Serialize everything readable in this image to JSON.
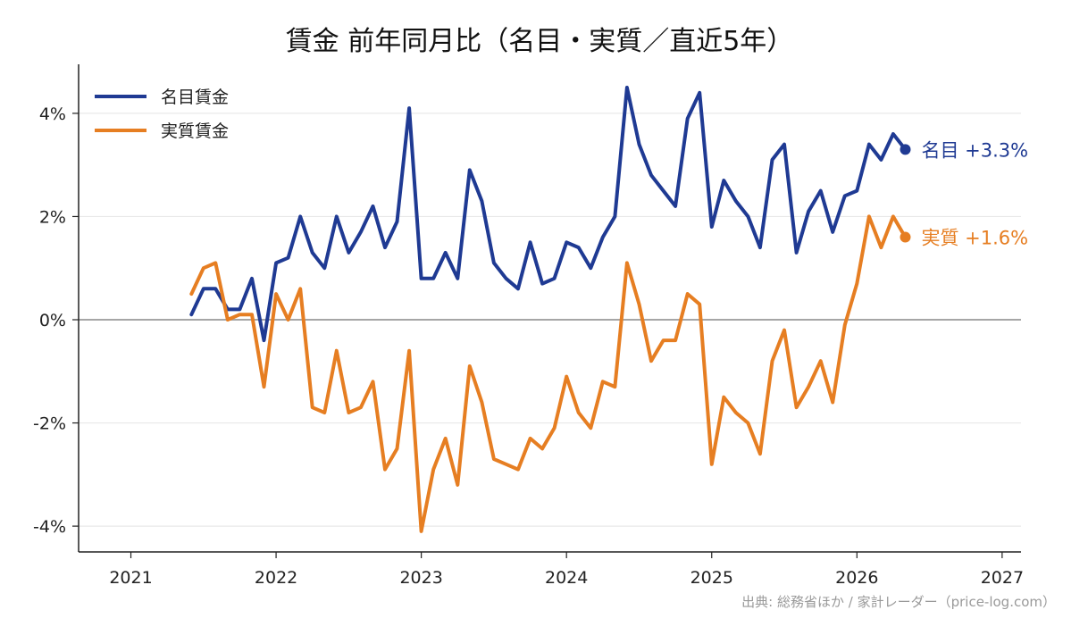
{
  "chart_data": {
    "type": "line",
    "title": "賃金 前年同月比（名目・実質／直近5年）",
    "source": "出典: 総務省ほか / 家計レーダー（price-log.com）",
    "xlim": [
      2020.64,
      2027.13
    ],
    "ylim": [
      -4.5,
      4.95
    ],
    "x_ticks": [
      2021,
      2022,
      2023,
      2024,
      2025,
      2026,
      2027
    ],
    "x_tick_labels": [
      "2021",
      "2022",
      "2023",
      "2024",
      "2025",
      "2026",
      "2027"
    ],
    "y_ticks": [
      -4,
      -2,
      0,
      2,
      4
    ],
    "y_tick_labels": [
      "-4%",
      "-2%",
      "0%",
      "2%",
      "4%"
    ],
    "grid": "horizontal",
    "legend_position": "top-left",
    "start": {
      "year": 2021,
      "month": 6
    },
    "series": [
      {
        "name": "名目賃金",
        "color": "#1f3a93",
        "end_label": "名目 +3.3%",
        "values": [
          0.1,
          0.6,
          0.6,
          0.2,
          0.2,
          0.8,
          -0.4,
          1.1,
          1.2,
          2.0,
          1.3,
          1.0,
          2.0,
          1.3,
          1.7,
          2.2,
          1.4,
          1.9,
          4.1,
          0.8,
          0.8,
          1.3,
          0.8,
          2.9,
          2.3,
          1.1,
          0.8,
          0.6,
          1.5,
          0.7,
          0.8,
          1.5,
          1.4,
          1.0,
          1.6,
          2.0,
          4.5,
          3.4,
          2.8,
          2.5,
          2.2,
          3.9,
          4.4,
          1.8,
          2.7,
          2.3,
          2.0,
          1.4,
          3.1,
          3.4,
          1.3,
          2.1,
          2.5,
          1.7,
          2.4,
          2.5,
          3.4,
          3.1,
          3.6,
          3.3
        ]
      },
      {
        "name": "実質賃金",
        "color": "#e67e22",
        "end_label": "実質 +1.6%",
        "values": [
          0.5,
          1.0,
          1.1,
          0.0,
          0.1,
          0.1,
          -1.3,
          0.5,
          0.0,
          0.6,
          -1.7,
          -1.8,
          -0.6,
          -1.8,
          -1.7,
          -1.2,
          -2.9,
          -2.5,
          -0.6,
          -4.1,
          -2.9,
          -2.3,
          -3.2,
          -0.9,
          -1.6,
          -2.7,
          -2.8,
          -2.9,
          -2.3,
          -2.5,
          -2.1,
          -1.1,
          -1.8,
          -2.1,
          -1.2,
          -1.3,
          1.1,
          0.3,
          -0.8,
          -0.4,
          -0.4,
          0.5,
          0.3,
          -2.8,
          -1.5,
          -1.8,
          -2.0,
          -2.6,
          -0.8,
          -0.2,
          -1.7,
          -1.3,
          -0.8,
          -1.6,
          -0.1,
          0.7,
          2.0,
          1.4,
          2.0,
          1.6
        ]
      }
    ]
  }
}
